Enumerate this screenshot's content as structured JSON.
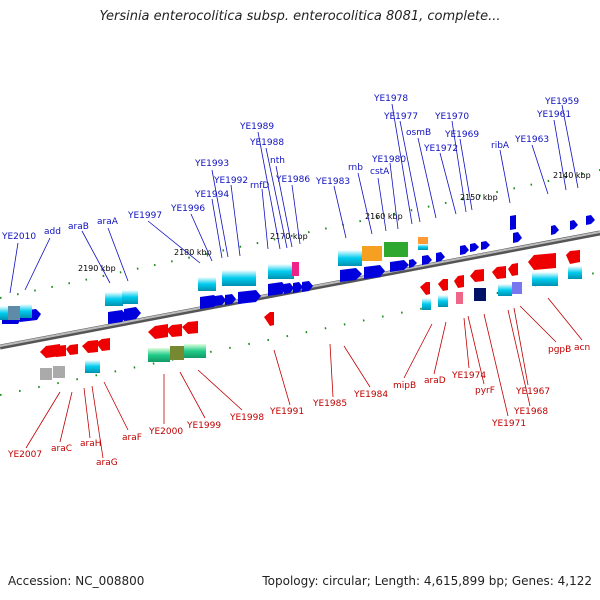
{
  "header": {
    "title": "Yersinia enterocolitica subsp. enterocolitica 8081, complete..."
  },
  "footer": {
    "accession": "Accession: NC_008800",
    "summary": "Topology: circular; Length: 4,615,899 bp; Genes: 4,122"
  },
  "ticks": [
    "2190 kbp",
    "2180 kbp",
    "2170 kbp",
    "2160 kbp",
    "2150 kbp",
    "2140 kbp"
  ],
  "genes_top": [
    "YE2010",
    "add",
    "araB",
    "araA",
    "YE1997",
    "YE1996",
    "YE1994",
    "YE1993",
    "YE1992",
    "YE1989",
    "YE1988",
    "nth",
    "rnfD",
    "YE1986",
    "YE1983",
    "rnb",
    "cstA",
    "YE1980",
    "YE1978",
    "YE1977",
    "osmB",
    "YE1972",
    "YE1970",
    "YE1969",
    "ribA",
    "YE1963",
    "YE1961",
    "YE1959"
  ],
  "genes_bottom": [
    "YE2007",
    "araC",
    "araH",
    "araG",
    "araF",
    "YE2000",
    "YE1999",
    "YE1998",
    "YE1991",
    "YE1985",
    "YE1984",
    "mipB",
    "araD",
    "YE1974",
    "pyrF",
    "YE1971",
    "YE1968",
    "YE1967",
    "pgpB",
    "acn"
  ],
  "colors": {
    "forward": "#0000dd",
    "reverse": "#ee0000",
    "backbone": "#888888",
    "cyan": "#00ccee"
  }
}
